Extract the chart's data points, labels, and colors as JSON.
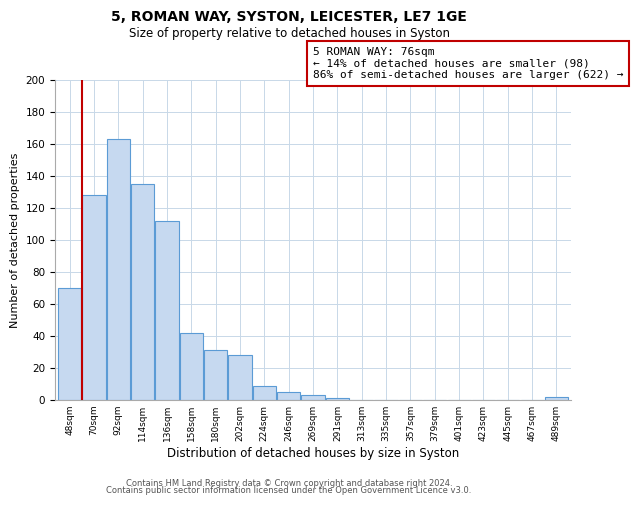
{
  "title": "5, ROMAN WAY, SYSTON, LEICESTER, LE7 1GE",
  "subtitle": "Size of property relative to detached houses in Syston",
  "xlabel": "Distribution of detached houses by size in Syston",
  "ylabel": "Number of detached properties",
  "bar_labels": [
    "48sqm",
    "70sqm",
    "92sqm",
    "114sqm",
    "136sqm",
    "158sqm",
    "180sqm",
    "202sqm",
    "224sqm",
    "246sqm",
    "269sqm",
    "291sqm",
    "313sqm",
    "335sqm",
    "357sqm",
    "379sqm",
    "401sqm",
    "423sqm",
    "445sqm",
    "467sqm",
    "489sqm"
  ],
  "bar_values": [
    70,
    128,
    163,
    135,
    112,
    42,
    31,
    28,
    9,
    5,
    3,
    1,
    0,
    0,
    0,
    0,
    0,
    0,
    0,
    0,
    2
  ],
  "bar_color": "#c6d9f0",
  "bar_edge_color": "#5b9bd5",
  "vline_x": 1.0,
  "vline_color": "#c00000",
  "annotation_text": "5 ROMAN WAY: 76sqm\n← 14% of detached houses are smaller (98)\n86% of semi-detached houses are larger (622) →",
  "annotation_box_color": "#ffffff",
  "annotation_box_edge": "#c00000",
  "ylim": [
    0,
    200
  ],
  "yticks": [
    0,
    20,
    40,
    60,
    80,
    100,
    120,
    140,
    160,
    180,
    200
  ],
  "footer_line1": "Contains HM Land Registry data © Crown copyright and database right 2024.",
  "footer_line2": "Contains public sector information licensed under the Open Government Licence v3.0.",
  "bg_color": "#ffffff",
  "grid_color": "#c8d8e8"
}
